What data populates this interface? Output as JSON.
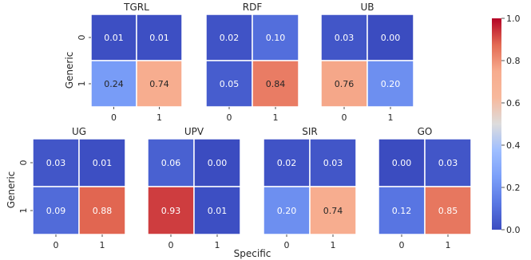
{
  "chart_data": {
    "type": "heatmap",
    "row_axis_label": "Generic",
    "col_axis_label": "Specific",
    "row_labels": [
      "0",
      "1"
    ],
    "col_labels": [
      "0",
      "1"
    ],
    "panels": [
      {
        "title": "TGRL",
        "values": [
          [
            "0.01",
            "0.01"
          ],
          [
            "0.24",
            "0.74"
          ]
        ]
      },
      {
        "title": "RDF",
        "values": [
          [
            "0.02",
            "0.10"
          ],
          [
            "0.05",
            "0.84"
          ]
        ]
      },
      {
        "title": "UB",
        "values": [
          [
            "0.03",
            "0.00"
          ],
          [
            "0.76",
            "0.20"
          ]
        ]
      },
      {
        "title": "UG",
        "values": [
          [
            "0.03",
            "0.01"
          ],
          [
            "0.09",
            "0.88"
          ]
        ]
      },
      {
        "title": "UPV",
        "values": [
          [
            "0.06",
            "0.00"
          ],
          [
            "0.93",
            "0.01"
          ]
        ]
      },
      {
        "title": "SIR",
        "values": [
          [
            "0.02",
            "0.03"
          ],
          [
            "0.20",
            "0.74"
          ]
        ]
      },
      {
        "title": "GO",
        "values": [
          [
            "0.00",
            "0.03"
          ],
          [
            "0.12",
            "0.85"
          ]
        ]
      }
    ],
    "colorbar": {
      "colormap": "coolwarm",
      "range": [
        0.0,
        1.0
      ],
      "tick_labels": [
        "0.0",
        "0.2",
        "0.4",
        "0.6",
        "0.8",
        "1.0"
      ]
    }
  }
}
